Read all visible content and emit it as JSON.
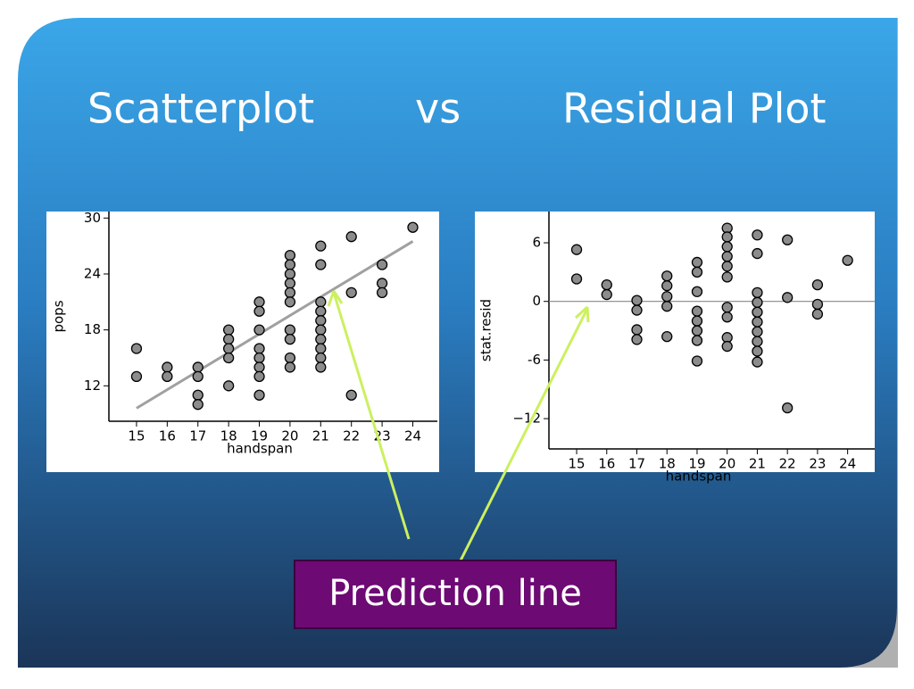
{
  "slide": {
    "title": [
      "Scatterplot",
      "vs",
      "Residual Plot"
    ],
    "annotation": "Prediction line"
  },
  "chart_data": [
    {
      "type": "scatter",
      "x_label": "handspan",
      "y_label": "pops",
      "xlim": [
        14.1,
        24.8
      ],
      "ylim": [
        8.2,
        30.7
      ],
      "xticks": [
        15,
        16,
        17,
        18,
        19,
        20,
        21,
        22,
        23,
        24
      ],
      "yticks": [
        12,
        18,
        24,
        30
      ],
      "color": "#8c8c8c",
      "x": [
        15,
        15,
        16,
        16,
        17,
        17,
        17,
        17,
        18,
        18,
        18,
        18,
        18,
        19,
        19,
        19,
        19,
        19,
        19,
        19,
        19,
        20,
        20,
        20,
        20,
        20,
        20,
        20,
        20,
        20,
        20,
        21,
        21,
        21,
        21,
        21,
        21,
        21,
        21,
        21,
        21,
        22,
        22,
        22,
        23,
        23,
        23,
        24
      ],
      "values": [
        16,
        13,
        14,
        13,
        14,
        13,
        11,
        10,
        18,
        17,
        16,
        15,
        12,
        21,
        20,
        18,
        16,
        15,
        14,
        13,
        11,
        26,
        25,
        24,
        23,
        22,
        21,
        18,
        17,
        15,
        14,
        27,
        25,
        21,
        20,
        19,
        18,
        17,
        16,
        15,
        14,
        28,
        22,
        11,
        25,
        23,
        22,
        29
      ],
      "fit_line": {
        "x": [
          15,
          24
        ],
        "values": [
          9.6,
          27.5
        ],
        "color": "#a0a0a0"
      }
    },
    {
      "type": "scatter",
      "x_label": "handspan",
      "y_label": "stat.resid",
      "xlim": [
        14.08,
        24.9
      ],
      "ylim": [
        -15.1,
        9.2
      ],
      "xticks": [
        15,
        16,
        17,
        18,
        19,
        20,
        21,
        22,
        23,
        24
      ],
      "yticks": [
        6,
        0,
        -6,
        {
          "value": -12,
          "label": "−12"
        }
      ],
      "color": "#8c8c8c",
      "reference_line": 0,
      "x": [
        15,
        15,
        16,
        16,
        17,
        17,
        17,
        17,
        18,
        18,
        18,
        18,
        18,
        19,
        19,
        19,
        19,
        19,
        19,
        19,
        19,
        20,
        20,
        20,
        20,
        20,
        20,
        20,
        20,
        20,
        20,
        21,
        21,
        21,
        21,
        21,
        21,
        21,
        21,
        21,
        21,
        22,
        22,
        22,
        23,
        23,
        23,
        24
      ],
      "values": [
        5.3,
        2.3,
        1.7,
        0.7,
        0.1,
        -0.9,
        -2.9,
        -3.9,
        2.6,
        1.6,
        0.5,
        -0.5,
        -3.6,
        4,
        3,
        1,
        -1,
        -2,
        -3,
        -4,
        -6.1,
        7.5,
        6.6,
        5.6,
        4.6,
        3.6,
        2.5,
        -0.6,
        -1.6,
        -3.7,
        -4.6,
        6.8,
        4.9,
        0.9,
        -0.1,
        -1.1,
        -2.1,
        -3.1,
        -4.1,
        -5.1,
        -6.2,
        6.3,
        0.4,
        -10.9,
        1.7,
        -0.3,
        -1.3,
        4.2
      ]
    }
  ]
}
